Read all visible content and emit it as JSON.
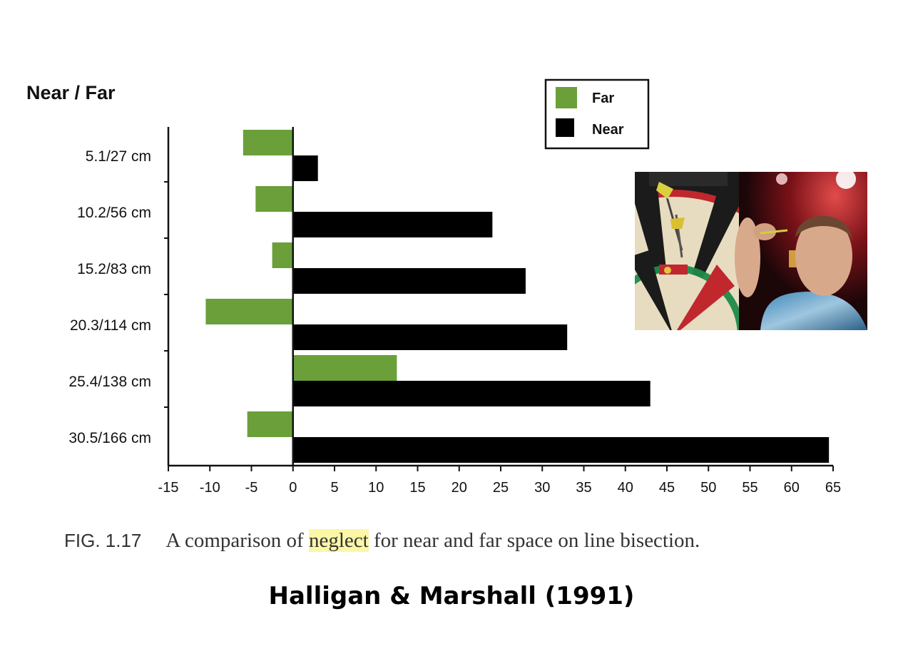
{
  "chart_data": {
    "type": "bar",
    "orientation": "horizontal",
    "title": "",
    "ylabel": "Near  /  Far",
    "xlabel": "",
    "categories": [
      "5.1/27 cm",
      "10.2/56 cm",
      "15.2/83 cm",
      "20.3/114 cm",
      "25.4/138 cm",
      "30.5/166 cm"
    ],
    "series": [
      {
        "name": "Far",
        "color": "#6a9f3a",
        "values": [
          -6,
          -4.5,
          -2.5,
          -10.5,
          12.5,
          -5.5
        ]
      },
      {
        "name": "Near",
        "color": "#000000",
        "values": [
          3,
          24,
          28,
          33,
          43,
          64.5
        ]
      }
    ],
    "xlim": [
      -15,
      65
    ],
    "xticks": [
      -15,
      -10,
      -5,
      0,
      5,
      10,
      15,
      20,
      25,
      30,
      35,
      40,
      45,
      50,
      55,
      60,
      65
    ],
    "legend_position": "top-right",
    "grid": false
  },
  "caption": {
    "fig_label": "FIG. 1.17",
    "text_before": "A comparison of ",
    "highlighted": "neglect",
    "text_after": " for near and far space on line bisection."
  },
  "citation": "Halligan & Marshall (1991)",
  "photo": {
    "subject": "darts-game-screenshot",
    "board_colors": [
      "#1b1b1b",
      "#e8dcc0",
      "#c0282e",
      "#1f8a4a"
    ]
  }
}
